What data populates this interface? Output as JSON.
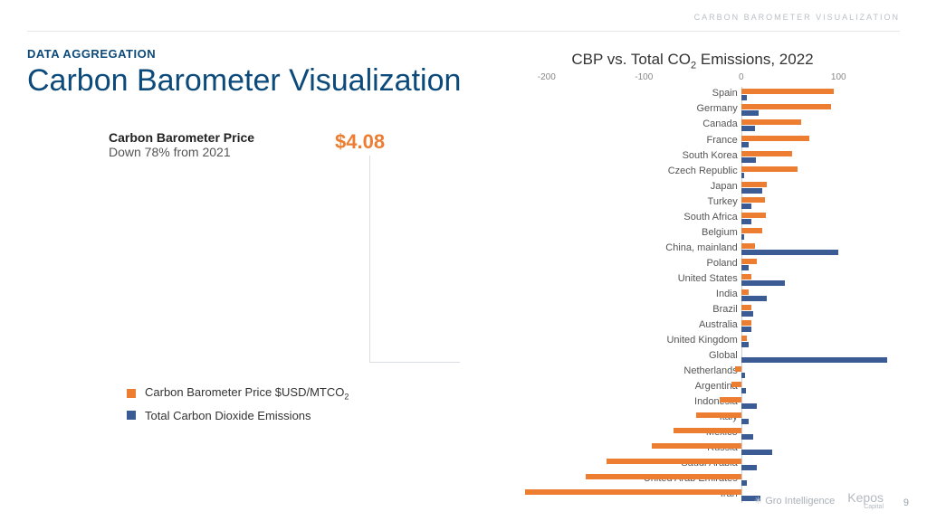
{
  "header_tag": "CARBON BAROMETER VISUALIZATION",
  "eyebrow": "DATA AGGREGATION",
  "title": "Carbon Barometer Visualization",
  "metric": {
    "label": "Carbon Barometer Price",
    "sub": "Down 78% from 2021",
    "value": "$4.08"
  },
  "legend": [
    {
      "color": "#ed7d31",
      "label": "Carbon Barometer Price $USD/MTCO",
      "sub": "2"
    },
    {
      "color": "#3b5b94",
      "label": "Total Carbon Dioxide Emissions",
      "sub": ""
    }
  ],
  "chart": {
    "title_pre": "CBP vs. Total CO",
    "title_sub": "2",
    "title_post": " Emissions, 2022",
    "xmin": -250,
    "xmax": 150,
    "ticks": [
      -200,
      -100,
      0,
      100
    ],
    "orange": "#ed7d31",
    "blue": "#3b5b94",
    "rows": [
      {
        "label": "Spain",
        "o": 95,
        "b": 6
      },
      {
        "label": "Germany",
        "o": 92,
        "b": 18
      },
      {
        "label": "Canada",
        "o": 62,
        "b": 14
      },
      {
        "label": "France",
        "o": 70,
        "b": 8
      },
      {
        "label": "South Korea",
        "o": 52,
        "b": 15
      },
      {
        "label": "Czech Republic",
        "o": 58,
        "b": 3
      },
      {
        "label": "Japan",
        "o": 26,
        "b": 22
      },
      {
        "label": "Turkey",
        "o": 24,
        "b": 10
      },
      {
        "label": "South Africa",
        "o": 25,
        "b": 10
      },
      {
        "label": "Belgium",
        "o": 22,
        "b": 3
      },
      {
        "label": "China, mainland",
        "o": 14,
        "b": 100
      },
      {
        "label": "Poland",
        "o": 16,
        "b": 8
      },
      {
        "label": "United States",
        "o": 10,
        "b": 45
      },
      {
        "label": "India",
        "o": 8,
        "b": 26
      },
      {
        "label": "Brazil",
        "o": 10,
        "b": 12
      },
      {
        "label": "Australia",
        "o": 10,
        "b": 10
      },
      {
        "label": "United Kingdom",
        "o": 6,
        "b": 8
      },
      {
        "label": "Global",
        "o": 0,
        "b": 150
      },
      {
        "label": "Netherlands",
        "o": -6,
        "b": 4
      },
      {
        "label": "Argentina",
        "o": -10,
        "b": 5
      },
      {
        "label": "Indonesia",
        "o": -22,
        "b": 16
      },
      {
        "label": "Italy",
        "o": -46,
        "b": 8
      },
      {
        "label": "Mexico",
        "o": -70,
        "b": 12
      },
      {
        "label": "Russia",
        "o": -92,
        "b": 32
      },
      {
        "label": "Saudi Arabia",
        "o": -138,
        "b": 16
      },
      {
        "label": "United Arab Emirates",
        "o": -160,
        "b": 6
      },
      {
        "label": "Iran",
        "o": -222,
        "b": 20
      }
    ]
  },
  "logos": {
    "gro": "Gro Intelligence",
    "kepos": "Kepos",
    "kepos_sub": "Capital"
  },
  "page": "9"
}
